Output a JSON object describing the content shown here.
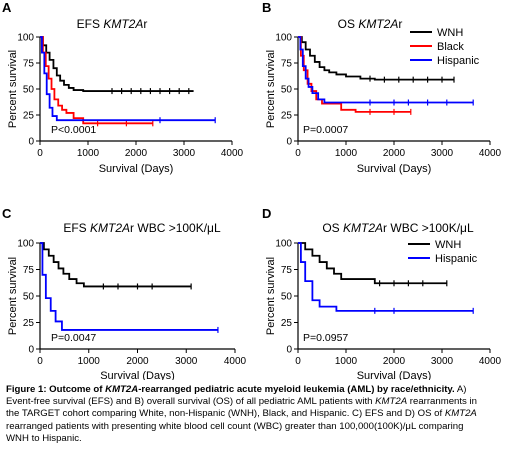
{
  "chart_data": [
    {
      "panel": "A",
      "type": "line",
      "title_parts": [
        {
          "text": "EFS ",
          "italic": false
        },
        {
          "text": "KMT2A",
          "italic": true
        },
        {
          "text": "r",
          "italic": false
        }
      ],
      "xlabel": "Survival (Days)",
      "ylabel": "Percent survival",
      "xlim": [
        0,
        4000
      ],
      "ylim": [
        0,
        100
      ],
      "xticks": [
        0,
        1000,
        2000,
        3000,
        4000
      ],
      "yticks": [
        0,
        25,
        50,
        75,
        100
      ],
      "annotation": "P<0.0001",
      "legend": null,
      "series": [
        {
          "name": "WNH",
          "color": "#000000",
          "points": [
            [
              0,
              100
            ],
            [
              60,
              92
            ],
            [
              130,
              85
            ],
            [
              200,
              78
            ],
            [
              280,
              70
            ],
            [
              350,
              63
            ],
            [
              420,
              58
            ],
            [
              500,
              54
            ],
            [
              600,
              51
            ],
            [
              700,
              49
            ],
            [
              900,
              48
            ],
            [
              1400,
              48
            ],
            [
              3200,
              48
            ]
          ],
          "censors": [
            1500,
            1700,
            1900,
            2100,
            2300,
            2500,
            2700,
            2900,
            3100
          ]
        },
        {
          "name": "Black",
          "color": "#ff0000",
          "points": [
            [
              0,
              100
            ],
            [
              60,
              85
            ],
            [
              120,
              72
            ],
            [
              180,
              60
            ],
            [
              240,
              50
            ],
            [
              300,
              40
            ],
            [
              380,
              34
            ],
            [
              460,
              30
            ],
            [
              550,
              27
            ],
            [
              700,
              22
            ],
            [
              900,
              17
            ],
            [
              2350,
              17
            ]
          ],
          "censors": [
            1200,
            1800,
            2350
          ]
        },
        {
          "name": "Hispanic",
          "color": "#0000ff",
          "points": [
            [
              0,
              100
            ],
            [
              40,
              85
            ],
            [
              90,
              65
            ],
            [
              140,
              45
            ],
            [
              200,
              32
            ],
            [
              260,
              24
            ],
            [
              350,
              20
            ],
            [
              3650,
              20
            ]
          ],
          "censors": [
            2500,
            3650
          ]
        }
      ]
    },
    {
      "panel": "B",
      "type": "line",
      "title_parts": [
        {
          "text": "OS ",
          "italic": false
        },
        {
          "text": "KMT2A",
          "italic": true
        },
        {
          "text": "r",
          "italic": false
        }
      ],
      "xlabel": "Survival (Days)",
      "ylabel": "Percent survival",
      "xlim": [
        0,
        4000
      ],
      "ylim": [
        0,
        100
      ],
      "xticks": [
        0,
        1000,
        2000,
        3000,
        4000
      ],
      "yticks": [
        0,
        25,
        50,
        75,
        100
      ],
      "annotation": "P=0.0007",
      "legend": [
        "WNH",
        "Black",
        "Hispanic"
      ],
      "series": [
        {
          "name": "WNH",
          "color": "#000000",
          "points": [
            [
              0,
              100
            ],
            [
              80,
              95
            ],
            [
              160,
              88
            ],
            [
              250,
              82
            ],
            [
              350,
              76
            ],
            [
              450,
              71
            ],
            [
              550,
              68
            ],
            [
              650,
              66
            ],
            [
              800,
              64
            ],
            [
              1000,
              62
            ],
            [
              1300,
              60
            ],
            [
              1600,
              59
            ],
            [
              3250,
              59
            ]
          ],
          "censors": [
            1500,
            1800,
            2100,
            2400,
            2700,
            3000,
            3250
          ]
        },
        {
          "name": "Black",
          "color": "#ff0000",
          "points": [
            [
              0,
              100
            ],
            [
              60,
              82
            ],
            [
              120,
              68
            ],
            [
              200,
              55
            ],
            [
              280,
              48
            ],
            [
              380,
              40
            ],
            [
              500,
              36
            ],
            [
              900,
              30
            ],
            [
              1200,
              28
            ],
            [
              2350,
              28
            ]
          ],
          "censors": [
            1500,
            2000,
            2350
          ]
        },
        {
          "name": "Hispanic",
          "color": "#0000ff",
          "points": [
            [
              0,
              100
            ],
            [
              50,
              88
            ],
            [
              100,
              72
            ],
            [
              160,
              60
            ],
            [
              220,
              52
            ],
            [
              300,
              46
            ],
            [
              420,
              40
            ],
            [
              550,
              37
            ],
            [
              3650,
              37
            ]
          ],
          "censors": [
            1500,
            2000,
            2300,
            2700,
            3100,
            3650
          ]
        }
      ]
    },
    {
      "panel": "C",
      "type": "line",
      "title_parts": [
        {
          "text": "EFS ",
          "italic": false
        },
        {
          "text": "KMT2A",
          "italic": true
        },
        {
          "text": "r WBC >100K/μL",
          "italic": false
        }
      ],
      "xlabel": "Survival (Days)",
      "ylabel": "Percent survival",
      "xlim": [
        0,
        4000
      ],
      "ylim": [
        0,
        100
      ],
      "xticks": [
        0,
        1000,
        2000,
        3000,
        4000
      ],
      "yticks": [
        0,
        25,
        50,
        75,
        100
      ],
      "annotation": "P=0.0047",
      "legend": null,
      "series": [
        {
          "name": "WNH",
          "color": "#000000",
          "points": [
            [
              0,
              100
            ],
            [
              80,
              94
            ],
            [
              180,
              88
            ],
            [
              280,
              82
            ],
            [
              380,
              76
            ],
            [
              480,
              71
            ],
            [
              600,
              66
            ],
            [
              750,
              62
            ],
            [
              900,
              59
            ],
            [
              3100,
              59
            ]
          ],
          "censors": [
            1300,
            1600,
            2000,
            2300,
            3100
          ]
        },
        {
          "name": "Hispanic",
          "color": "#0000ff",
          "points": [
            [
              0,
              100
            ],
            [
              50,
              70
            ],
            [
              120,
              48
            ],
            [
              220,
              36
            ],
            [
              320,
              26
            ],
            [
              450,
              18
            ],
            [
              3650,
              18
            ]
          ],
          "censors": [
            3650
          ]
        }
      ]
    },
    {
      "panel": "D",
      "type": "line",
      "title_parts": [
        {
          "text": "OS ",
          "italic": false
        },
        {
          "text": "KMT2A",
          "italic": true
        },
        {
          "text": "r WBC >100K/μL",
          "italic": false
        }
      ],
      "xlabel": "Survival (Days)",
      "ylabel": "Percent survival",
      "xlim": [
        0,
        4000
      ],
      "ylim": [
        0,
        100
      ],
      "xticks": [
        0,
        1000,
        2000,
        3000,
        4000
      ],
      "yticks": [
        0,
        25,
        50,
        75,
        100
      ],
      "annotation": "P=0.0957",
      "legend": [
        "WNH",
        "Hispanic"
      ],
      "series": [
        {
          "name": "WNH",
          "color": "#000000",
          "points": [
            [
              0,
              100
            ],
            [
              150,
              94
            ],
            [
              300,
              88
            ],
            [
              450,
              82
            ],
            [
              600,
              76
            ],
            [
              750,
              71
            ],
            [
              900,
              66
            ],
            [
              1500,
              66
            ],
            [
              1600,
              62
            ],
            [
              3100,
              62
            ]
          ],
          "censors": [
            1700,
            2000,
            2300,
            2600,
            3100
          ]
        },
        {
          "name": "Hispanic",
          "color": "#0000ff",
          "points": [
            [
              0,
              100
            ],
            [
              60,
              82
            ],
            [
              150,
              64
            ],
            [
              300,
              46
            ],
            [
              450,
              40
            ],
            [
              800,
              36
            ],
            [
              3650,
              36
            ]
          ],
          "censors": [
            1600,
            2000,
            3650
          ]
        }
      ]
    }
  ],
  "caption": {
    "lines": [
      [
        {
          "text": "Figure 1: Outcome of ",
          "style": "bold"
        },
        {
          "text": "KMT2A",
          "style": "bold italic"
        },
        {
          "text": "-rearranged pediatric acute myeloid leukemia (AML) by race/ethnicity.",
          "style": "bold"
        },
        {
          "text": " A)",
          "style": "normal"
        }
      ],
      [
        {
          "text": "Event-free survival (EFS) and B) overall survival (OS) of all pediatric AML patients with ",
          "style": "normal"
        },
        {
          "text": "KMT2A",
          "style": "italic"
        },
        {
          "text": " rearranments in",
          "style": "normal"
        }
      ],
      [
        {
          "text": "the TARGET cohort comparing White, non-Hispanic (WNH), Black, and Hispanic.  C) EFS and D) OS of ",
          "style": "normal"
        },
        {
          "text": "KMT2A",
          "style": "italic"
        }
      ],
      [
        {
          "text": "rearranged patients with presenting white blood cell count (WBC) greater than 100,000(100K)/μL comparing",
          "style": "normal"
        }
      ],
      [
        {
          "text": "WNH to Hispanic.",
          "style": "normal"
        }
      ]
    ]
  }
}
